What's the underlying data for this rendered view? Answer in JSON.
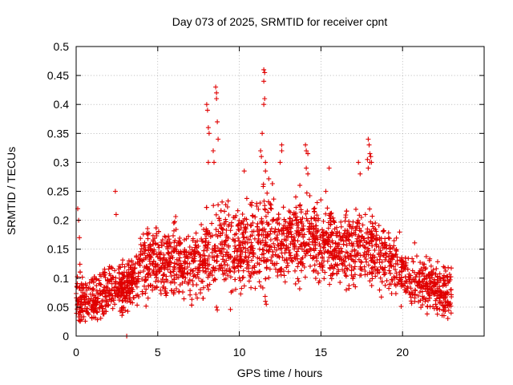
{
  "chart_data": {
    "type": "scatter",
    "title": "Day 073 of 2025, SRMTID for receiver cpnt",
    "xlabel": "GPS time / hours",
    "ylabel": "SRMTID / TECUs",
    "xlim": [
      0,
      25
    ],
    "ylim": [
      0,
      0.5
    ],
    "x_ticks": [
      "0",
      "5",
      "10",
      "15",
      "20"
    ],
    "y_ticks": [
      "0",
      "0.05",
      "0.1",
      "0.15",
      "0.2",
      "0.25",
      "0.3",
      "0.35",
      "0.4",
      "0.45",
      "0.5"
    ],
    "grid": true,
    "marker": "+",
    "color": "#e00000",
    "envelope": {
      "x": [
        0,
        0.5,
        1,
        1.5,
        2,
        2.5,
        3,
        3.5,
        4,
        4.5,
        5,
        5.5,
        6,
        6.5,
        7,
        7.5,
        8,
        8.5,
        9,
        9.5,
        10,
        10.5,
        11,
        11.5,
        12,
        12.5,
        13,
        13.5,
        14,
        14.5,
        15,
        15.5,
        16,
        16.5,
        17,
        17.5,
        18,
        18.5,
        19,
        19.5,
        20,
        20.5,
        21,
        21.5,
        22,
        22.5,
        23
      ],
      "median": [
        0.07,
        0.06,
        0.06,
        0.07,
        0.08,
        0.09,
        0.08,
        0.1,
        0.12,
        0.13,
        0.13,
        0.13,
        0.13,
        0.12,
        0.12,
        0.13,
        0.14,
        0.15,
        0.16,
        0.15,
        0.15,
        0.16,
        0.16,
        0.17,
        0.17,
        0.16,
        0.16,
        0.17,
        0.17,
        0.17,
        0.16,
        0.16,
        0.15,
        0.15,
        0.16,
        0.15,
        0.15,
        0.14,
        0.13,
        0.12,
        0.11,
        0.1,
        0.09,
        0.09,
        0.08,
        0.08,
        0.07
      ],
      "spread": [
        0.05,
        0.04,
        0.04,
        0.04,
        0.04,
        0.04,
        0.04,
        0.04,
        0.05,
        0.05,
        0.05,
        0.05,
        0.05,
        0.05,
        0.05,
        0.05,
        0.06,
        0.06,
        0.06,
        0.06,
        0.06,
        0.06,
        0.07,
        0.07,
        0.07,
        0.06,
        0.06,
        0.06,
        0.06,
        0.06,
        0.06,
        0.06,
        0.06,
        0.06,
        0.06,
        0.06,
        0.06,
        0.05,
        0.05,
        0.05,
        0.04,
        0.04,
        0.04,
        0.04,
        0.04,
        0.04,
        0.04
      ]
    },
    "n_points": 2600,
    "outliers": [
      {
        "x": 0.1,
        "y": 0.22
      },
      {
        "x": 0.15,
        "y": 0.2
      },
      {
        "x": 0.2,
        "y": 0.17
      },
      {
        "x": 2.4,
        "y": 0.25
      },
      {
        "x": 2.45,
        "y": 0.21
      },
      {
        "x": 3.1,
        "y": 0.0
      },
      {
        "x": 8.0,
        "y": 0.4
      },
      {
        "x": 8.05,
        "y": 0.39
      },
      {
        "x": 8.1,
        "y": 0.36
      },
      {
        "x": 8.15,
        "y": 0.35
      },
      {
        "x": 8.1,
        "y": 0.3
      },
      {
        "x": 8.55,
        "y": 0.43
      },
      {
        "x": 8.6,
        "y": 0.42
      },
      {
        "x": 8.6,
        "y": 0.41
      },
      {
        "x": 8.65,
        "y": 0.37
      },
      {
        "x": 8.7,
        "y": 0.34
      },
      {
        "x": 8.4,
        "y": 0.32
      },
      {
        "x": 8.45,
        "y": 0.3
      },
      {
        "x": 8.6,
        "y": 0.05
      },
      {
        "x": 8.65,
        "y": 0.045
      },
      {
        "x": 11.5,
        "y": 0.46
      },
      {
        "x": 11.55,
        "y": 0.455
      },
      {
        "x": 11.5,
        "y": 0.44
      },
      {
        "x": 11.55,
        "y": 0.41
      },
      {
        "x": 11.5,
        "y": 0.4
      },
      {
        "x": 11.4,
        "y": 0.35
      },
      {
        "x": 11.3,
        "y": 0.32
      },
      {
        "x": 11.35,
        "y": 0.31
      },
      {
        "x": 11.6,
        "y": 0.3
      },
      {
        "x": 11.6,
        "y": 0.285
      },
      {
        "x": 11.6,
        "y": 0.06
      },
      {
        "x": 11.65,
        "y": 0.055
      },
      {
        "x": 12.6,
        "y": 0.33
      },
      {
        "x": 12.6,
        "y": 0.32
      },
      {
        "x": 12.5,
        "y": 0.3
      },
      {
        "x": 14.05,
        "y": 0.33
      },
      {
        "x": 14.1,
        "y": 0.32
      },
      {
        "x": 14.2,
        "y": 0.315
      },
      {
        "x": 14.1,
        "y": 0.29
      },
      {
        "x": 14.2,
        "y": 0.28
      },
      {
        "x": 17.3,
        "y": 0.3
      },
      {
        "x": 17.4,
        "y": 0.28
      },
      {
        "x": 17.9,
        "y": 0.34
      },
      {
        "x": 17.95,
        "y": 0.33
      },
      {
        "x": 18.0,
        "y": 0.315
      },
      {
        "x": 18.05,
        "y": 0.31
      },
      {
        "x": 17.85,
        "y": 0.305
      },
      {
        "x": 18.0,
        "y": 0.3
      },
      {
        "x": 18.1,
        "y": 0.3
      },
      {
        "x": 17.9,
        "y": 0.29
      },
      {
        "x": 15.5,
        "y": 0.29
      },
      {
        "x": 15.3,
        "y": 0.25
      },
      {
        "x": 10.3,
        "y": 0.285
      }
    ]
  }
}
